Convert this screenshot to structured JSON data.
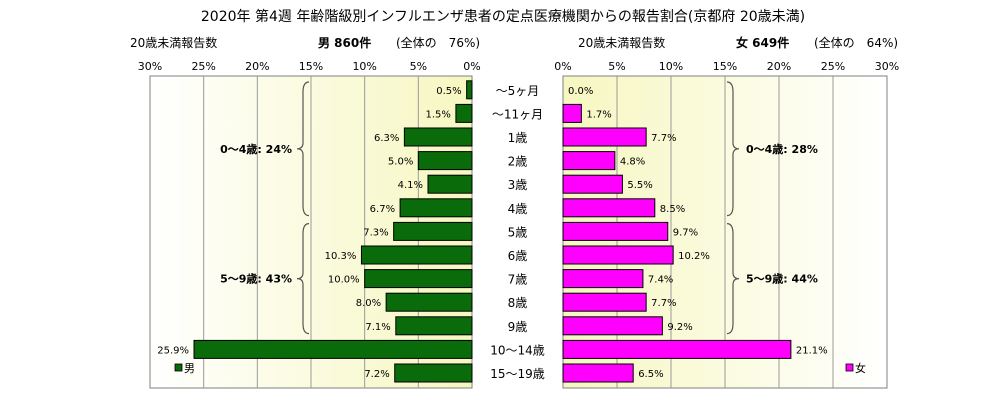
{
  "title": "2020年 第4週 年齢階級別インフルエンザ患者の定点医療機関からの報告割合(京都府 20歳未満)",
  "left_header": {
    "label": "20歳未満報告数",
    "group": "男 860件",
    "share": "(全体の　76%)"
  },
  "right_header": {
    "label": "20歳未満報告数",
    "group": "女 649件",
    "share": "(全体の　64%)"
  },
  "colors": {
    "male": "#0a6b0a",
    "female": "#ff00ff",
    "plot_bg_light": "#ffffff",
    "plot_bg_dark": "#f6f7c0"
  },
  "chart_data": {
    "type": "bar",
    "orientation": "horizontal-butterfly",
    "categories": [
      "～5ヶ月",
      "～11ヶ月",
      "1歳",
      "2歳",
      "3歳",
      "4歳",
      "5歳",
      "6歳",
      "7歳",
      "8歳",
      "9歳",
      "10～14歳",
      "15～19歳"
    ],
    "series": [
      {
        "name": "男",
        "side": "left",
        "values": [
          0.5,
          1.5,
          6.3,
          5.0,
          4.1,
          6.7,
          7.3,
          10.3,
          10.0,
          8.0,
          7.1,
          25.9,
          7.2
        ],
        "labels": [
          "0.5%",
          "1.5%",
          "6.3%",
          "5.0%",
          "4.1%",
          "6.7%",
          "7.3%",
          "10.3%",
          "10.0%",
          "8.0%",
          "7.1%",
          "25.9%",
          "7.2%"
        ]
      },
      {
        "name": "女",
        "side": "right",
        "values": [
          0.0,
          1.7,
          7.7,
          4.8,
          5.5,
          8.5,
          9.7,
          10.2,
          7.4,
          7.7,
          9.2,
          21.1,
          6.5
        ],
        "labels": [
          "0.0%",
          "1.7%",
          "7.7%",
          "4.8%",
          "5.5%",
          "8.5%",
          "9.7%",
          "10.2%",
          "7.4%",
          "7.7%",
          "9.2%",
          "21.1%",
          "6.5%"
        ]
      }
    ],
    "xlim": [
      0,
      30
    ],
    "left_ticks": [
      "30%",
      "25%",
      "20%",
      "15%",
      "10%",
      "5%",
      "0%"
    ],
    "right_ticks": [
      "0%",
      "5%",
      "10%",
      "15%",
      "20%",
      "25%",
      "30%"
    ],
    "tick_values": [
      0,
      5,
      10,
      15,
      20,
      25,
      30
    ],
    "grid": true,
    "legend": {
      "male": "男",
      "female": "女",
      "male_position": "bottom-left",
      "female_position": "bottom-right"
    },
    "annotations": {
      "left": [
        {
          "text": "0～4歳: 24%",
          "from": 0,
          "to": 5
        },
        {
          "text": "5～9歳: 43%",
          "from": 6,
          "to": 10
        }
      ],
      "right": [
        {
          "text": "0～4歳: 28%",
          "from": 0,
          "to": 5
        },
        {
          "text": "5～9歳: 44%",
          "from": 6,
          "to": 10
        }
      ]
    }
  }
}
